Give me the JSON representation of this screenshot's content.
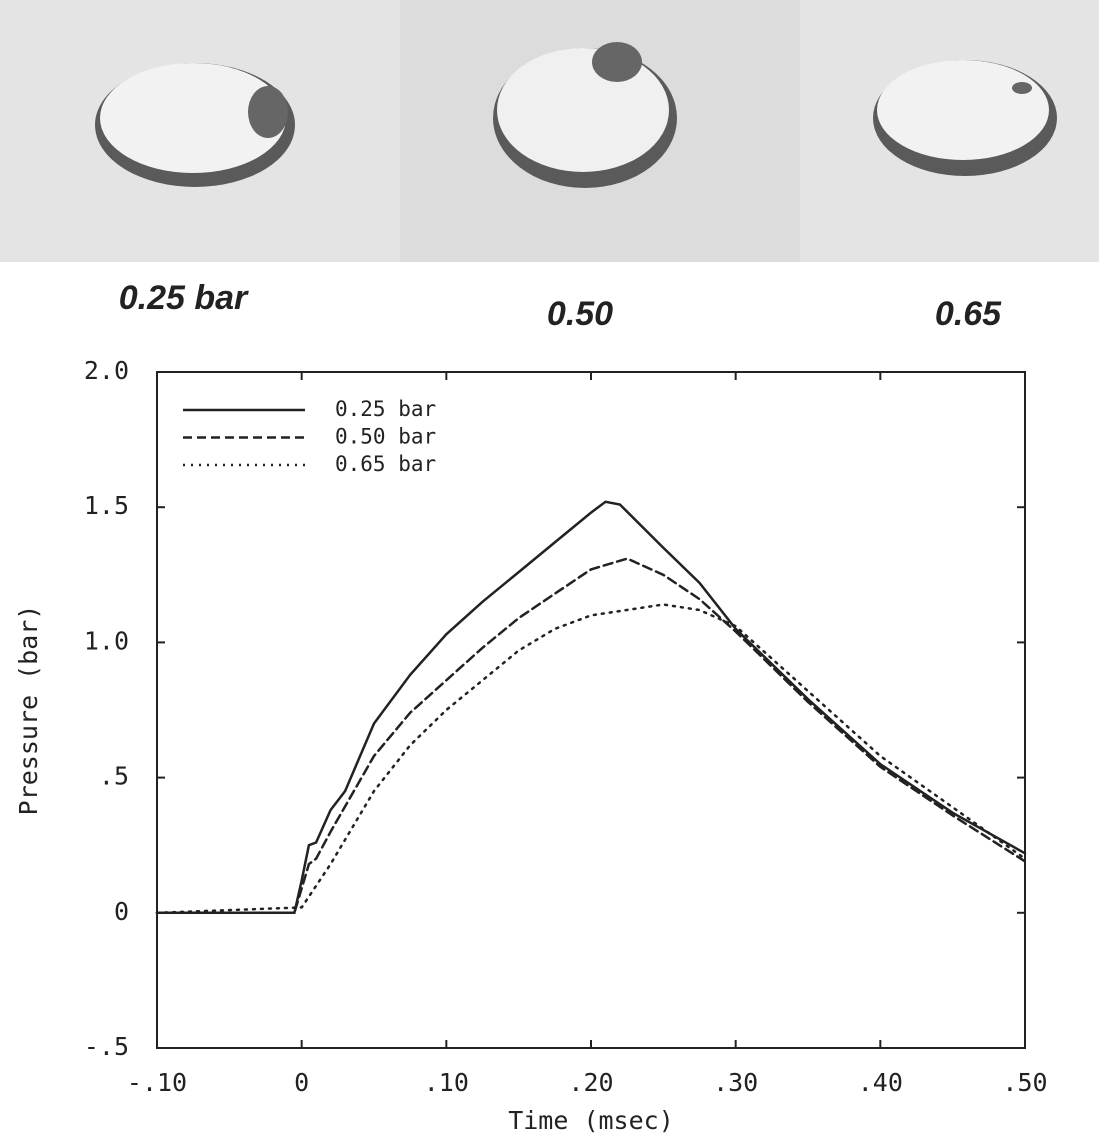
{
  "chart_data": {
    "type": "line",
    "annotations": [
      "0.25 bar",
      "0.50",
      "0.65"
    ],
    "xlabel": "Time (msec)",
    "ylabel": "Pressure (bar)",
    "xlim": [
      -0.1,
      0.5
    ],
    "xticks": [
      {
        "value": -0.1,
        "label": "-.10"
      },
      0,
      {
        "value": 0.1,
        "label": ".10"
      },
      {
        "value": 0.2,
        "label": ".20"
      },
      {
        "value": 0.3,
        "label": ".30"
      },
      {
        "value": 0.4,
        "label": ".40"
      },
      {
        "value": 0.5,
        "label": ".50"
      }
    ],
    "ylim": [
      -0.5,
      2.0
    ],
    "yticks": [
      {
        "value": -0.5,
        "label": "-.5"
      },
      0,
      {
        "value": 0.5,
        "label": ".5"
      },
      {
        "value": 1.0,
        "label": "1.0"
      },
      {
        "value": 1.5,
        "label": "1.5"
      },
      {
        "value": 2.0,
        "label": "2.0"
      }
    ],
    "grid": false,
    "legend": "upper left",
    "series": [
      {
        "name": "0.25 bar",
        "color": "#222222",
        "dash": "solid",
        "x": [
          -0.1,
          -0.005,
          0,
          0.005,
          0.01,
          0.02,
          0.03,
          0.05,
          0.075,
          0.1,
          0.125,
          0.15,
          0.175,
          0.2,
          0.21,
          0.22,
          0.25,
          0.275,
          0.3,
          0.35,
          0.4,
          0.45,
          0.5
        ],
        "values": [
          0,
          0,
          0.12,
          0.25,
          0.26,
          0.38,
          0.45,
          0.7,
          0.88,
          1.03,
          1.15,
          1.26,
          1.37,
          1.48,
          1.52,
          1.51,
          1.35,
          1.22,
          1.05,
          0.79,
          0.55,
          0.37,
          0.22
        ]
      },
      {
        "name": "0.50 bar",
        "color": "#222222",
        "dash": "dashed",
        "x": [
          -0.1,
          -0.005,
          0.005,
          0.01,
          0.02,
          0.05,
          0.075,
          0.1,
          0.125,
          0.15,
          0.175,
          0.2,
          0.225,
          0.25,
          0.275,
          0.3,
          0.35,
          0.4,
          0.45,
          0.5
        ],
        "values": [
          0,
          0,
          0.18,
          0.2,
          0.3,
          0.58,
          0.74,
          0.86,
          0.98,
          1.09,
          1.18,
          1.27,
          1.31,
          1.25,
          1.16,
          1.04,
          0.78,
          0.54,
          0.36,
          0.19
        ]
      },
      {
        "name": "0.65 bar",
        "color": "#222222",
        "dash": "dotted",
        "x": [
          -0.1,
          0,
          0.01,
          0.02,
          0.05,
          0.075,
          0.1,
          0.125,
          0.15,
          0.175,
          0.2,
          0.25,
          0.275,
          0.3,
          0.35,
          0.4,
          0.45,
          0.5
        ],
        "values": [
          0,
          0.02,
          0.1,
          0.18,
          0.45,
          0.62,
          0.75,
          0.86,
          0.97,
          1.05,
          1.1,
          1.14,
          1.12,
          1.06,
          0.82,
          0.58,
          0.39,
          0.2
        ]
      }
    ]
  }
}
